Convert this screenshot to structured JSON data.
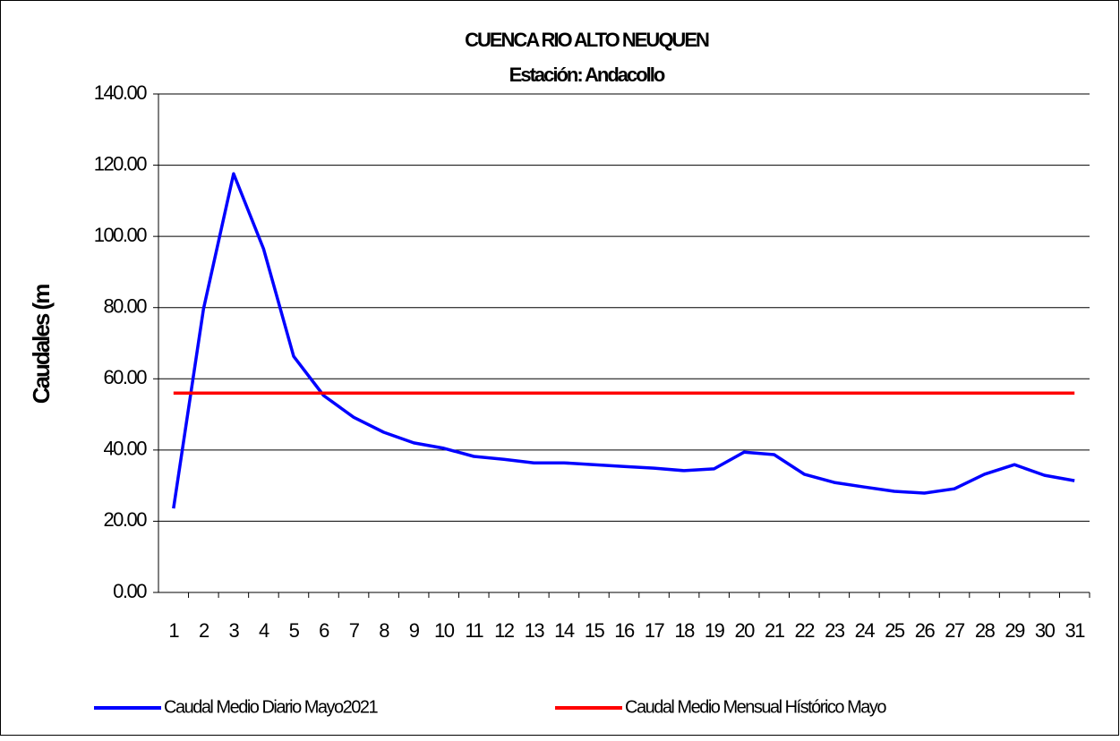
{
  "chart_data": {
    "type": "line",
    "title": "CUENCA RIO ALTO NEUQUEN",
    "subtitle": "Estación: Andacollo",
    "y_label": "Caudales (m",
    "categories": [
      "1",
      "2",
      "3",
      "4",
      "5",
      "6",
      "7",
      "8",
      "9",
      "10",
      "11",
      "12",
      "13",
      "14",
      "15",
      "16",
      "17",
      "18",
      "19",
      "20",
      "21",
      "22",
      "23",
      "24",
      "25",
      "26",
      "27",
      "28",
      "29",
      "30",
      "31"
    ],
    "series": [
      {
        "name": "Caudal Medio Diario Mayo2021",
        "color": "#0000ff",
        "values": [
          23.6,
          79.6,
          117.6,
          96.5,
          66.3,
          55.3,
          49.2,
          45.0,
          42.0,
          40.5,
          38.2,
          37.4,
          36.4,
          36.4,
          35.9,
          35.4,
          34.9,
          34.2,
          34.7,
          39.4,
          38.7,
          33.2,
          30.9,
          29.6,
          28.4,
          27.9,
          29.1,
          33.2,
          35.9,
          32.9,
          31.4
        ]
      },
      {
        "name": "Caudal Medio Mensual Hístórico Mayo",
        "color": "#ff0000",
        "values": [
          56,
          56,
          56,
          56,
          56,
          56,
          56,
          56,
          56,
          56,
          56,
          56,
          56,
          56,
          56,
          56,
          56,
          56,
          56,
          56,
          56,
          56,
          56,
          56,
          56,
          56,
          56,
          56,
          56,
          56,
          56
        ]
      }
    ],
    "ylim": [
      0,
      140
    ],
    "yticks": [
      {
        "value": 0,
        "label": "0.00"
      },
      {
        "value": 20,
        "label": "20.00"
      },
      {
        "value": 40,
        "label": "40.00"
      },
      {
        "value": 60,
        "label": "60.00"
      },
      {
        "value": 80,
        "label": "80.00"
      },
      {
        "value": 100,
        "label": "100.00"
      },
      {
        "value": 120,
        "label": "120.00"
      },
      {
        "value": 140,
        "label": "140.00"
      }
    ],
    "grid": true,
    "legend": "bottom"
  }
}
